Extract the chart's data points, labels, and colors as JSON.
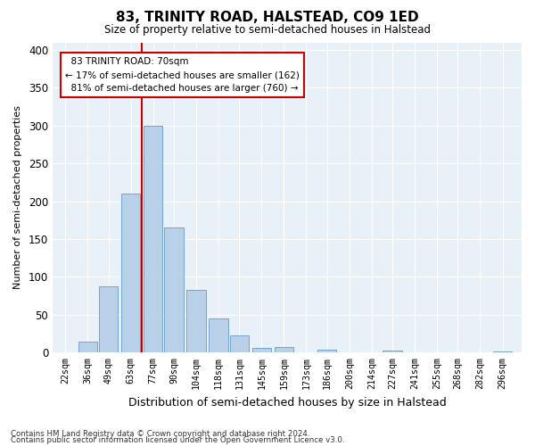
{
  "title": "83, TRINITY ROAD, HALSTEAD, CO9 1ED",
  "subtitle": "Size of property relative to semi-detached houses in Halstead",
  "xlabel": "Distribution of semi-detached houses by size in Halstead",
  "ylabel": "Number of semi-detached properties",
  "footnote1": "Contains HM Land Registry data © Crown copyright and database right 2024.",
  "footnote2": "Contains public sector information licensed under the Open Government Licence v3.0.",
  "bin_labels": [
    "22sqm",
    "36sqm",
    "49sqm",
    "63sqm",
    "77sqm",
    "90sqm",
    "104sqm",
    "118sqm",
    "131sqm",
    "145sqm",
    "159sqm",
    "173sqm",
    "186sqm",
    "200sqm",
    "214sqm",
    "227sqm",
    "241sqm",
    "255sqm",
    "268sqm",
    "282sqm",
    "296sqm"
  ],
  "bar_values": [
    0,
    15,
    88,
    210,
    300,
    165,
    83,
    45,
    23,
    6,
    8,
    0,
    4,
    0,
    0,
    3,
    0,
    0,
    0,
    0,
    2
  ],
  "bar_color": "#b8d0e8",
  "bar_edge_color": "#6699cc",
  "subject_sqm": 70,
  "subject_label": "83 TRINITY ROAD: 70sqm",
  "pct_smaller": 17,
  "count_smaller": 162,
  "pct_larger": 81,
  "count_larger": 760,
  "annotation_box_color": "#ffffff",
  "annotation_box_edge": "#cc0000",
  "subject_line_color": "#cc0000",
  "ylim": [
    0,
    410
  ],
  "yticks": [
    0,
    50,
    100,
    150,
    200,
    250,
    300,
    350,
    400
  ],
  "plot_bg_color": "#e8f0f8",
  "bin_width": 13
}
